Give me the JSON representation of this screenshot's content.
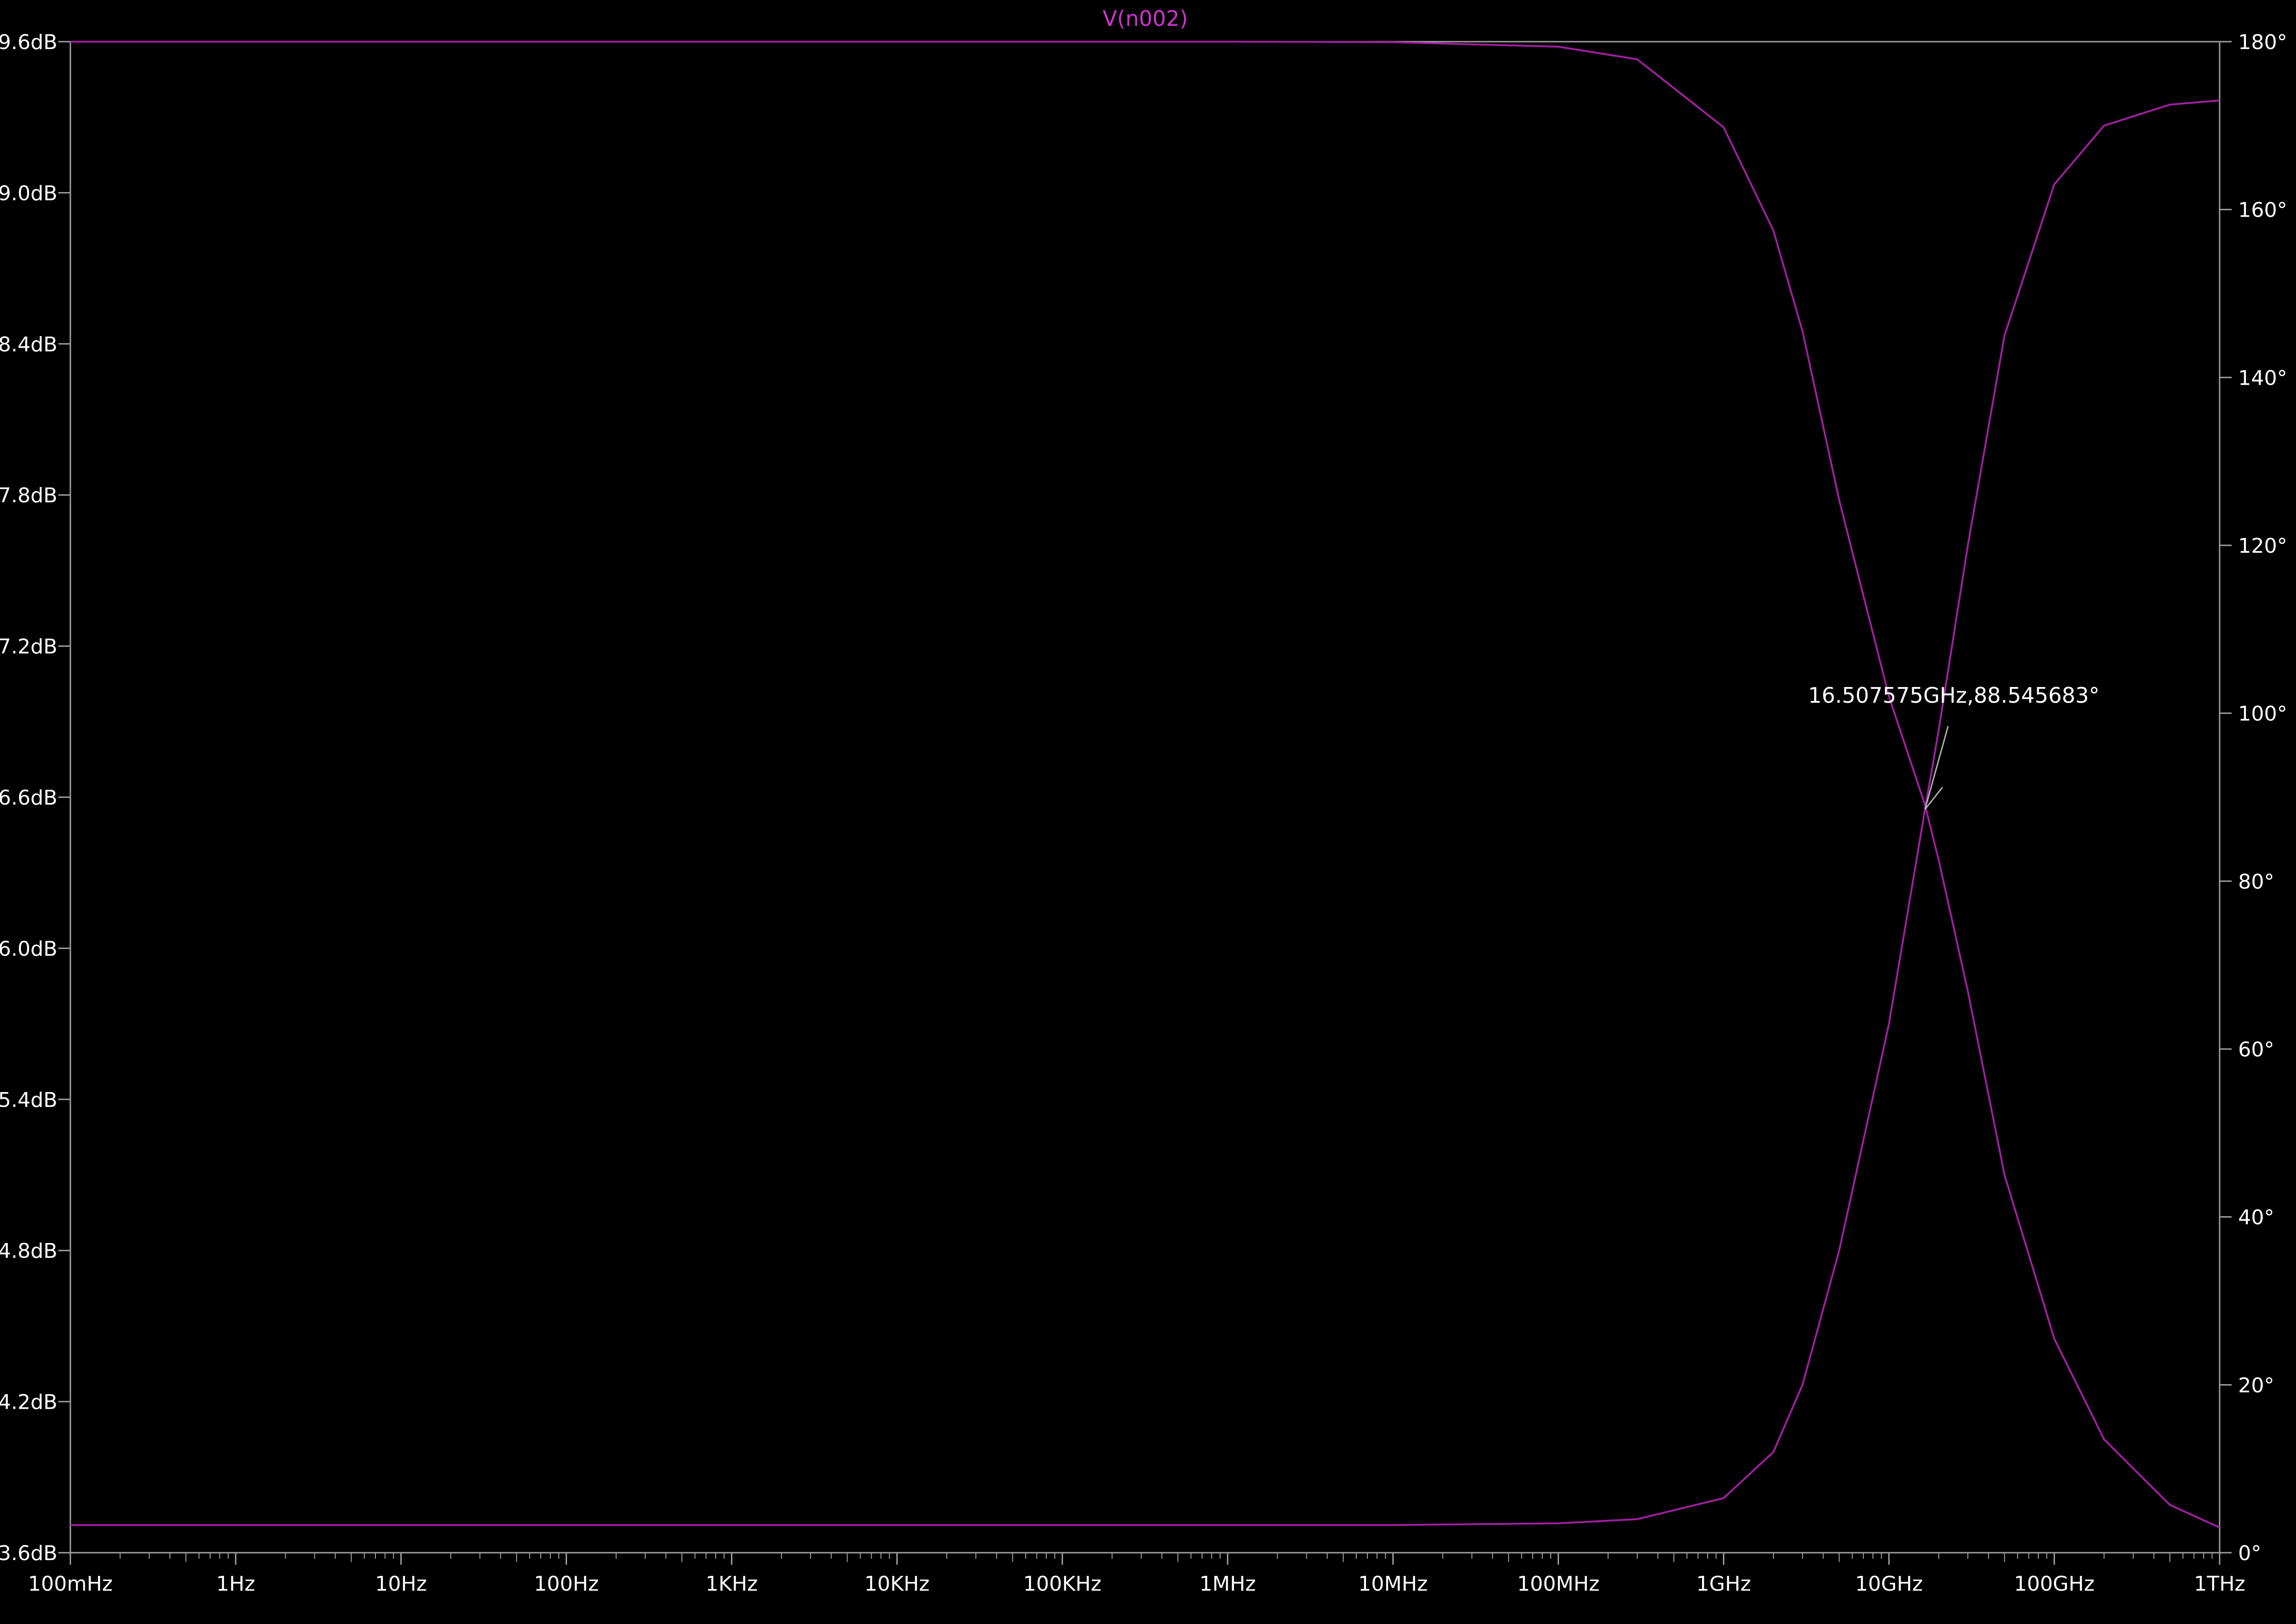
{
  "chart_data": {
    "type": "line",
    "title": "V(n002)",
    "x_scale": "log",
    "x_range_hz": [
      0.1,
      1000000000000.0
    ],
    "x_tick_values_hz": [
      0.1,
      1,
      10,
      100,
      1000.0,
      10000.0,
      100000.0,
      1000000.0,
      10000000.0,
      100000000.0,
      1000000000.0,
      10000000000.0,
      100000000000.0,
      1000000000000.0
    ],
    "x_tick_labels": [
      "100mHz",
      "1Hz",
      "10Hz",
      "100Hz",
      "1KHz",
      "10KHz",
      "100KHz",
      "1MHz",
      "10MHz",
      "100MHz",
      "1GHz",
      "10GHz",
      "100GHz",
      "1THz"
    ],
    "y_left_range_db": [
      3.6,
      9.6
    ],
    "y_left_tick_values": [
      3.6,
      4.2,
      4.8,
      5.4,
      6.0,
      6.6,
      7.2,
      7.8,
      8.4,
      9.0,
      9.6
    ],
    "y_left_tick_labels": [
      "3.6dB",
      "4.2dB",
      "4.8dB",
      "5.4dB",
      "6.0dB",
      "6.6dB",
      "7.2dB",
      "7.8dB",
      "8.4dB",
      "9.0dB",
      "9.6dB"
    ],
    "y_right_range_deg": [
      0,
      180
    ],
    "y_right_tick_values": [
      0,
      20,
      40,
      60,
      80,
      100,
      120,
      140,
      160,
      180
    ],
    "y_right_tick_labels": [
      "0°",
      "20°",
      "40°",
      "60°",
      "80°",
      "100°",
      "120°",
      "140°",
      "160°",
      "180°"
    ],
    "grid": false,
    "series": [
      {
        "name": "V(n002)",
        "axis": "left",
        "x_hz": [
          0.1,
          1000000.0,
          10000000.0,
          100000000.0,
          300000000.0,
          1000000000.0,
          2000000000.0,
          3000000000.0,
          5000000000.0,
          10000000000.0,
          16500000000.0,
          20000000000.0,
          30000000000.0,
          50000000000.0,
          100000000000.0,
          200000000000.0,
          500000000000.0,
          1000000000000.0
        ],
        "values_db": [
          9.6,
          9.6,
          9.598,
          9.58,
          9.53,
          9.26,
          8.85,
          8.45,
          7.78,
          7.0,
          6.57,
          6.35,
          5.83,
          5.1,
          4.45,
          4.05,
          3.79,
          3.7
        ]
      },
      {
        "name": "V(n002)",
        "axis": "right",
        "x_hz": [
          0.1,
          10000000.0,
          100000000.0,
          300000000.0,
          1000000000.0,
          2000000000.0,
          3000000000.0,
          5000000000.0,
          10000000000.0,
          16500000000.0,
          20000000000.0,
          30000000000.0,
          50000000000.0,
          100000000000.0,
          200000000000.0,
          500000000000.0,
          1000000000000.0
        ],
        "values_deg": [
          3.3,
          3.3,
          3.5,
          4.0,
          6.5,
          12.0,
          20.0,
          36.0,
          63.0,
          88.5,
          98.0,
          120.0,
          145.0,
          163.0,
          170.0,
          172.5,
          173.0
        ]
      }
    ],
    "cursor": {
      "label": "16.507575GHz,88.545683°",
      "x_hz": 16507575000,
      "value_deg": 88.545683
    },
    "colors": {
      "background": "#000000",
      "axes": "#a0a0a0",
      "trace": "#a020a0",
      "title": "#cc33cc",
      "text": "#ffffff"
    }
  }
}
